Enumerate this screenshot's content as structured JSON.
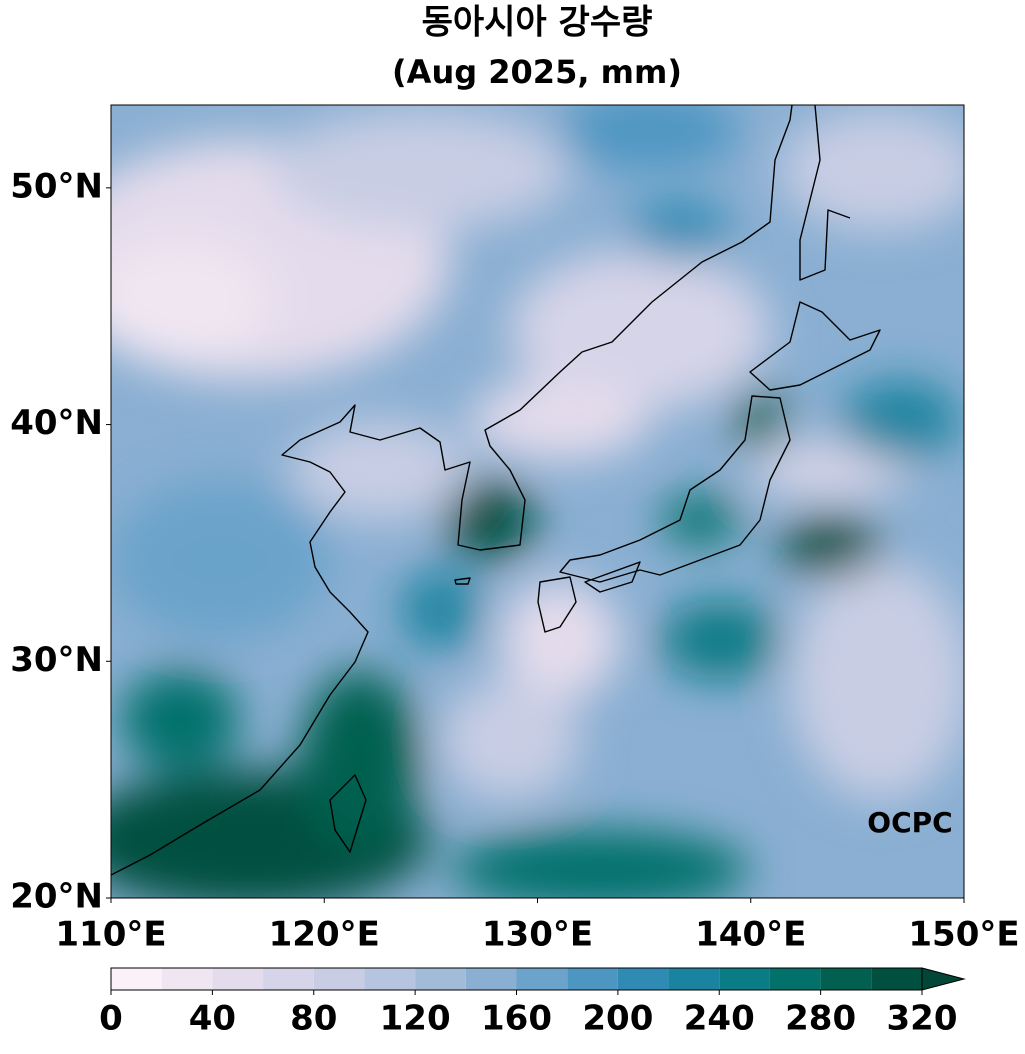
{
  "title": "동아시아 강수량",
  "subtitle": "(Aug 2025, mm)",
  "map": {
    "xlim": [
      110,
      150
    ],
    "ylim": [
      20,
      53.5
    ],
    "xticks": [
      {
        "value": 110,
        "label": "110°E"
      },
      {
        "value": 120,
        "label": "120°E"
      },
      {
        "value": 130,
        "label": "130°E"
      },
      {
        "value": 140,
        "label": "140°E"
      },
      {
        "value": 150,
        "label": "150°E"
      }
    ],
    "yticks": [
      {
        "value": 20,
        "label": "20°N"
      },
      {
        "value": 30,
        "label": "30°N"
      },
      {
        "value": 40,
        "label": "40°N"
      },
      {
        "value": 50,
        "label": "50°N"
      }
    ]
  },
  "colorbar": {
    "levels": [
      0,
      20,
      40,
      60,
      80,
      100,
      120,
      140,
      160,
      180,
      200,
      220,
      240,
      260,
      280,
      300,
      320
    ],
    "colors": [
      "#fbf1f8",
      "#f0e6f2",
      "#e4dcec",
      "#d6d4e8",
      "#c8cde4",
      "#b6c4df",
      "#a2bbd9",
      "#8aafd2",
      "#6ba3ca",
      "#4d96c2",
      "#2f8bb4",
      "#1a84a0",
      "#0a7c85",
      "#02716a",
      "#016050",
      "#01503f"
    ],
    "extend_color": "#014636",
    "ticks": [
      0,
      40,
      80,
      120,
      160,
      200,
      240,
      280,
      320
    ]
  },
  "watermark": "OCPC"
}
